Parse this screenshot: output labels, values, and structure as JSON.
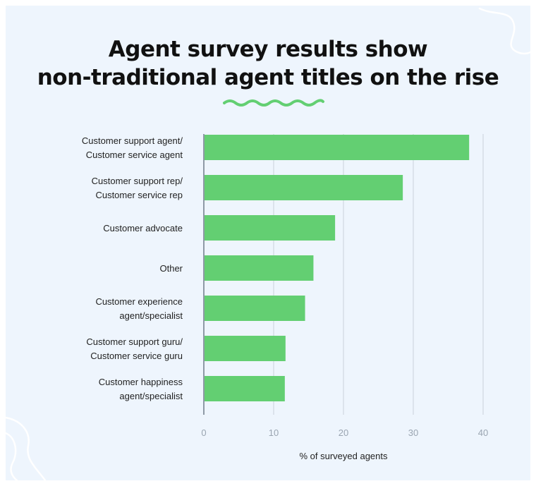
{
  "title_lines": [
    "Agent survey results show",
    "non-traditional agent titles on the rise"
  ],
  "colors": {
    "background": "#eef5fd",
    "bar": "#63cf72",
    "accent_squiggle": "#63cf72",
    "grid": "#d5dde6",
    "decor_lines": "#ffffff"
  },
  "chart_data": {
    "type": "bar",
    "orientation": "horizontal",
    "title": "Agent survey results show non-traditional agent titles on the rise",
    "xlabel": "% of surveyed agents",
    "ylabel": "",
    "xlim": [
      0,
      40
    ],
    "xticks": [
      0,
      10,
      20,
      30,
      40
    ],
    "grid": true,
    "categories": [
      [
        "Customer support agent/",
        "Customer service agent"
      ],
      [
        "Customer support rep/",
        "Customer service rep"
      ],
      [
        "Customer advocate"
      ],
      [
        "Other"
      ],
      [
        "Customer experience",
        "agent/specialist"
      ],
      [
        "Customer support guru/",
        "Customer service guru"
      ],
      [
        "Customer happiness",
        "agent/specialist"
      ]
    ],
    "values": [
      38,
      28.5,
      18.8,
      15.7,
      14.5,
      11.7,
      11.6
    ]
  }
}
